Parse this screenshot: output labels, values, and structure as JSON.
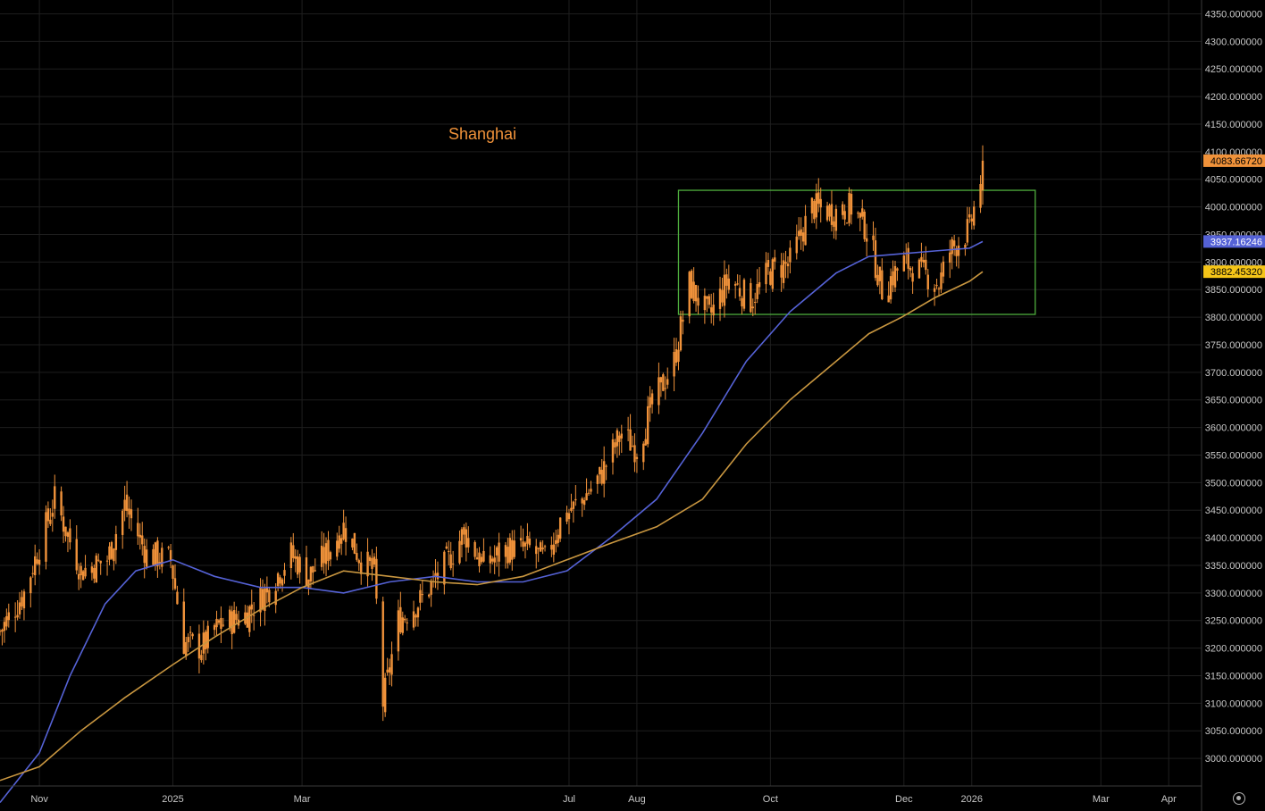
{
  "title": "Shanghai",
  "colors": {
    "background": "#000000",
    "grid": "#1e1e1e",
    "candle": "#f0923a",
    "ma_fast": "#5562d6",
    "ma_slow": "#c89640",
    "box": "#4fae3d",
    "axis_text": "#c8c8c8"
  },
  "icons": {
    "settings": "gear-icon"
  },
  "chart_data": {
    "type": "candlestick",
    "title": "Shanghai",
    "ylim": [
      2950,
      4375
    ],
    "y_ticks": [
      "3000.000000",
      "3050.000000",
      "3100.000000",
      "3150.000000",
      "3200.000000",
      "3250.000000",
      "3300.000000",
      "3350.000000",
      "3400.000000",
      "3450.000000",
      "3500.000000",
      "3550.000000",
      "3600.000000",
      "3650.000000",
      "3700.000000",
      "3750.000000",
      "3800.000000",
      "3850.000000",
      "3900.000000",
      "3950.000000",
      "4000.000000",
      "4050.000000",
      "4100.000000",
      "4150.000000",
      "4200.000000",
      "4250.000000",
      "4300.000000",
      "4350.000000"
    ],
    "x_ticks": [
      {
        "label": "Nov",
        "date": "2024-11-01"
      },
      {
        "label": "2025",
        "date": "2025-01-01"
      },
      {
        "label": "Mar",
        "date": "2025-03-01"
      },
      {
        "label": "Jul",
        "date": "2025-07-01"
      },
      {
        "label": "Aug",
        "date": "2025-08-01"
      },
      {
        "label": "Oct",
        "date": "2025-10-01"
      },
      {
        "label": "Dec",
        "date": "2025-12-01"
      },
      {
        "label": "2026",
        "date": "2026-01-01"
      },
      {
        "label": "Mar",
        "date": "2026-03-01"
      },
      {
        "label": "Apr",
        "date": "2026-04-01"
      }
    ],
    "x_range": [
      "2024-10-14",
      "2026-04-16"
    ],
    "grid": true,
    "price_labels": [
      {
        "value": "4083.66720",
        "bg": "#f0923a",
        "fg": "#000000"
      },
      {
        "value": "3937.16246",
        "bg": "#5562d6",
        "fg": "#ffffff"
      },
      {
        "value": "3882.45320",
        "bg": "#f5c518",
        "fg": "#000000"
      }
    ],
    "box": {
      "x0": "2025-08-20",
      "x1": "2026-01-30",
      "y0": 3805,
      "y1": 4030
    },
    "close_path": [
      [
        "2024-10-14",
        3230
      ],
      [
        "2024-10-25",
        3300
      ],
      [
        "2024-11-08",
        3470
      ],
      [
        "2024-11-20",
        3340
      ],
      [
        "2024-12-02",
        3360
      ],
      [
        "2024-12-10",
        3460
      ],
      [
        "2024-12-20",
        3370
      ],
      [
        "2024-12-31",
        3360
      ],
      [
        "2025-01-06",
        3210
      ],
      [
        "2025-01-14",
        3200
      ],
      [
        "2025-01-22",
        3240
      ],
      [
        "2025-02-03",
        3260
      ],
      [
        "2025-02-14",
        3310
      ],
      [
        "2025-02-24",
        3370
      ],
      [
        "2025-03-04",
        3330
      ],
      [
        "2025-03-12",
        3370
      ],
      [
        "2025-03-20",
        3420
      ],
      [
        "2025-03-28",
        3360
      ],
      [
        "2025-04-03",
        3340
      ],
      [
        "2025-04-07",
        3100
      ],
      [
        "2025-04-14",
        3250
      ],
      [
        "2025-04-25",
        3290
      ],
      [
        "2025-05-07",
        3360
      ],
      [
        "2025-05-14",
        3410
      ],
      [
        "2025-05-23",
        3350
      ],
      [
        "2025-06-03",
        3380
      ],
      [
        "2025-06-13",
        3380
      ],
      [
        "2025-06-20",
        3360
      ],
      [
        "2025-06-27",
        3430
      ],
      [
        "2025-07-07",
        3470
      ],
      [
        "2025-07-15",
        3510
      ],
      [
        "2025-07-25",
        3590
      ],
      [
        "2025-08-01",
        3560
      ],
      [
        "2025-08-08",
        3640
      ],
      [
        "2025-08-18",
        3720
      ],
      [
        "2025-08-25",
        3860
      ],
      [
        "2025-09-03",
        3800
      ],
      [
        "2025-09-12",
        3870
      ],
      [
        "2025-09-22",
        3830
      ],
      [
        "2025-09-30",
        3880
      ],
      [
        "2025-10-10",
        3900
      ],
      [
        "2025-10-20",
        4000
      ],
      [
        "2025-10-30",
        3990
      ],
      [
        "2025-11-07",
        4000
      ],
      [
        "2025-11-14",
        3960
      ],
      [
        "2025-11-21",
        3850
      ],
      [
        "2025-12-01",
        3900
      ],
      [
        "2025-12-10",
        3880
      ],
      [
        "2025-12-17",
        3860
      ],
      [
        "2025-12-22",
        3920
      ],
      [
        "2025-12-31",
        3960
      ],
      [
        "2026-01-05",
        4050
      ],
      [
        "2026-01-06",
        4083.67
      ]
    ],
    "series": [
      {
        "name": "",
        "type": "line",
        "color": "#5562d6",
        "points": [
          [
            "2024-10-14",
            2920
          ],
          [
            "2024-11-01",
            3010
          ],
          [
            "2024-11-15",
            3150
          ],
          [
            "2024-12-01",
            3280
          ],
          [
            "2024-12-15",
            3340
          ],
          [
            "2025-01-01",
            3360
          ],
          [
            "2025-01-20",
            3330
          ],
          [
            "2025-02-10",
            3310
          ],
          [
            "2025-03-01",
            3310
          ],
          [
            "2025-03-20",
            3300
          ],
          [
            "2025-04-10",
            3320
          ],
          [
            "2025-05-01",
            3330
          ],
          [
            "2025-05-20",
            3320
          ],
          [
            "2025-06-10",
            3320
          ],
          [
            "2025-06-30",
            3340
          ],
          [
            "2025-07-20",
            3400
          ],
          [
            "2025-08-10",
            3470
          ],
          [
            "2025-08-31",
            3590
          ],
          [
            "2025-09-20",
            3720
          ],
          [
            "2025-10-10",
            3810
          ],
          [
            "2025-10-31",
            3880
          ],
          [
            "2025-11-15",
            3910
          ],
          [
            "2025-11-30",
            3915
          ],
          [
            "2025-12-15",
            3920
          ],
          [
            "2025-12-31",
            3925
          ],
          [
            "2026-01-06",
            3937.16
          ]
        ]
      },
      {
        "name": "",
        "type": "line",
        "color": "#c89640",
        "points": [
          [
            "2024-10-14",
            2960
          ],
          [
            "2024-11-01",
            2985
          ],
          [
            "2024-11-20",
            3050
          ],
          [
            "2024-12-10",
            3110
          ],
          [
            "2025-01-01",
            3170
          ],
          [
            "2025-01-20",
            3220
          ],
          [
            "2025-02-10",
            3270
          ],
          [
            "2025-03-01",
            3310
          ],
          [
            "2025-03-20",
            3340
          ],
          [
            "2025-04-10",
            3330
          ],
          [
            "2025-05-01",
            3320
          ],
          [
            "2025-05-20",
            3315
          ],
          [
            "2025-06-10",
            3330
          ],
          [
            "2025-06-30",
            3360
          ],
          [
            "2025-07-20",
            3390
          ],
          [
            "2025-08-10",
            3420
          ],
          [
            "2025-08-31",
            3470
          ],
          [
            "2025-09-20",
            3570
          ],
          [
            "2025-10-10",
            3650
          ],
          [
            "2025-10-31",
            3720
          ],
          [
            "2025-11-15",
            3770
          ],
          [
            "2025-11-30",
            3800
          ],
          [
            "2025-12-15",
            3835
          ],
          [
            "2025-12-31",
            3865
          ],
          [
            "2026-01-06",
            3882.45
          ]
        ]
      }
    ]
  }
}
